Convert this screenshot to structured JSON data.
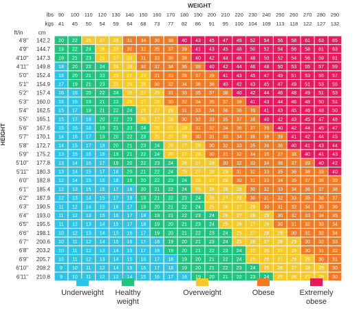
{
  "chart_data": {
    "type": "heatmap",
    "x_title": "WEIGHT",
    "y_title": "HEIGHT",
    "header_labels": {
      "lbs": "lbs",
      "kgs": "kgs",
      "ftin": "ft/in",
      "cm": "cm"
    },
    "weights_lbs": [
      "90",
      "100",
      "110",
      "120",
      "130",
      "140",
      "150",
      "160",
      "170",
      "180",
      "190",
      "200",
      "210",
      "220",
      "230",
      "240",
      "250",
      "260",
      "270",
      "280",
      "290"
    ],
    "weights_kgs": [
      "41",
      "45",
      "50",
      "54",
      "59",
      "64",
      "68",
      "73",
      "77",
      "82",
      "86",
      "91",
      "95",
      "100",
      "104",
      "109",
      "113",
      "118",
      "122",
      "127",
      "132"
    ],
    "heights_ftin": [
      "4'8\"",
      "4'9\"",
      "4'10\"",
      "4'11\"",
      "5'0\"",
      "5'1\"",
      "5'2\"",
      "5'3\"",
      "5'4\"",
      "5'5\"",
      "5'6\"",
      "5'7\"",
      "5'8\"",
      "5'9\"",
      "5'10\"",
      "5'11\"",
      "6'0\"",
      "6'1\"",
      "6'2\"",
      "6'3\"",
      "6'4\"",
      "6'5\"",
      "6'6\"",
      "6'7\"",
      "6'8\"",
      "6'9\"",
      "6'10\"",
      "6'11\""
    ],
    "heights_cm": [
      "142.2",
      "144.7",
      "147.3",
      "149.8",
      "152.4",
      "154.9",
      "157.4",
      "160.0",
      "162.5",
      "165.1",
      "167.6",
      "170.1",
      "172.7",
      "175.2",
      "177.8",
      "180.3",
      "182.8",
      "185.4",
      "187.9",
      "190.5",
      "193.0",
      "195.5",
      "198.1",
      "200.6",
      "203.2",
      "205.7",
      "208.2",
      "210.8"
    ],
    "values": [
      [
        20,
        22,
        25,
        27,
        29,
        31,
        34,
        36,
        38,
        40,
        43,
        45,
        47,
        49,
        52,
        54,
        56,
        58,
        61,
        63,
        65
      ],
      [
        19,
        22,
        24,
        26,
        28,
        30,
        32,
        35,
        37,
        39,
        41,
        43,
        45,
        48,
        50,
        52,
        54,
        56,
        58,
        61,
        63
      ],
      [
        19,
        21,
        23,
        25,
        27,
        29,
        31,
        33,
        36,
        38,
        40,
        42,
        44,
        46,
        48,
        50,
        52,
        54,
        56,
        59,
        61
      ],
      [
        18,
        20,
        22,
        24,
        26,
        28,
        30,
        32,
        34,
        36,
        38,
        40,
        42,
        44,
        46,
        48,
        50,
        53,
        55,
        57,
        59
      ],
      [
        18,
        20,
        21,
        23,
        25,
        27,
        29,
        31,
        33,
        35,
        37,
        39,
        41,
        43,
        45,
        47,
        49,
        51,
        53,
        55,
        57
      ],
      [
        17,
        19,
        21,
        23,
        25,
        26,
        28,
        30,
        32,
        34,
        36,
        38,
        40,
        42,
        43,
        45,
        47,
        49,
        51,
        53,
        55
      ],
      [
        16,
        18,
        20,
        22,
        24,
        26,
        27,
        29,
        31,
        33,
        35,
        37,
        38,
        40,
        42,
        44,
        46,
        48,
        49,
        51,
        53
      ],
      [
        16,
        18,
        19,
        21,
        23,
        25,
        27,
        28,
        30,
        32,
        34,
        35,
        37,
        39,
        41,
        43,
        44,
        46,
        48,
        50,
        51
      ],
      [
        15,
        17,
        19,
        21,
        22,
        24,
        26,
        27,
        29,
        31,
        33,
        34,
        36,
        38,
        39,
        41,
        43,
        45,
        46,
        48,
        50
      ],
      [
        15,
        17,
        18,
        20,
        22,
        23,
        25,
        27,
        28,
        30,
        32,
        33,
        35,
        37,
        38,
        40,
        42,
        43,
        45,
        47,
        48
      ],
      [
        15,
        16,
        18,
        19,
        21,
        23,
        24,
        26,
        27,
        29,
        31,
        32,
        34,
        36,
        37,
        39,
        40,
        42,
        44,
        45,
        47
      ],
      [
        14,
        16,
        17,
        19,
        20,
        22,
        23,
        25,
        27,
        28,
        30,
        31,
        33,
        34,
        36,
        38,
        39,
        41,
        42,
        44,
        45
      ],
      [
        14,
        15,
        17,
        18,
        20,
        21,
        23,
        24,
        26,
        27,
        29,
        30,
        32,
        33,
        35,
        36,
        38,
        40,
        41,
        43,
        44
      ],
      [
        13,
        15,
        16,
        18,
        19,
        21,
        22,
        24,
        25,
        27,
        28,
        30,
        31,
        32,
        34,
        35,
        37,
        38,
        40,
        41,
        43
      ],
      [
        13,
        14,
        16,
        17,
        19,
        20,
        22,
        23,
        24,
        26,
        27,
        29,
        30,
        32,
        33,
        34,
        36,
        37,
        39,
        40,
        42
      ],
      [
        13,
        14,
        15,
        17,
        18,
        20,
        21,
        22,
        24,
        25,
        27,
        28,
        29,
        31,
        32,
        33,
        35,
        36,
        38,
        39,
        40
      ],
      [
        12,
        14,
        15,
        16,
        18,
        19,
        20,
        22,
        23,
        24,
        26,
        27,
        28,
        30,
        31,
        33,
        34,
        35,
        37,
        38,
        39
      ],
      [
        12,
        13,
        15,
        16,
        17,
        18,
        20,
        21,
        22,
        24,
        25,
        26,
        28,
        29,
        30,
        32,
        33,
        34,
        36,
        37,
        38
      ],
      [
        12,
        13,
        14,
        15,
        17,
        18,
        19,
        21,
        22,
        23,
        24,
        26,
        27,
        28,
        30,
        31,
        32,
        33,
        35,
        36,
        37
      ],
      [
        11,
        12,
        14,
        15,
        16,
        17,
        19,
        20,
        21,
        22,
        24,
        25,
        26,
        27,
        29,
        30,
        31,
        32,
        34,
        35,
        36
      ],
      [
        11,
        12,
        13,
        15,
        16,
        17,
        18,
        19,
        21,
        22,
        23,
        24,
        26,
        27,
        28,
        29,
        30,
        32,
        33,
        34,
        35
      ],
      [
        11,
        12,
        13,
        14,
        15,
        17,
        18,
        19,
        20,
        21,
        23,
        24,
        25,
        26,
        27,
        28,
        30,
        31,
        32,
        33,
        34
      ],
      [
        10,
        12,
        13,
        14,
        15,
        16,
        17,
        19,
        20,
        21,
        22,
        23,
        24,
        25,
        27,
        28,
        29,
        30,
        31,
        32,
        34
      ],
      [
        10,
        11,
        12,
        14,
        15,
        16,
        17,
        18,
        19,
        20,
        21,
        23,
        24,
        25,
        26,
        27,
        28,
        29,
        30,
        32,
        33
      ],
      [
        10,
        11,
        12,
        13,
        14,
        15,
        17,
        18,
        19,
        20,
        21,
        22,
        23,
        24,
        25,
        26,
        27,
        29,
        30,
        31,
        32
      ],
      [
        10,
        11,
        12,
        13,
        14,
        15,
        16,
        17,
        18,
        19,
        20,
        21,
        22,
        24,
        25,
        26,
        27,
        28,
        29,
        30,
        31
      ],
      [
        9,
        10,
        11,
        12,
        14,
        15,
        16,
        17,
        18,
        19,
        20,
        21,
        22,
        23,
        24,
        25,
        26,
        27,
        28,
        29,
        30
      ],
      [
        9,
        10,
        11,
        12,
        13,
        14,
        15,
        16,
        17,
        18,
        19,
        20,
        21,
        22,
        23,
        24,
        25,
        26,
        27,
        28,
        30
      ]
    ],
    "categories": [
      {
        "name": "Underweight",
        "min": 0,
        "max": 18.4,
        "color": "#2ec4e8"
      },
      {
        "name": "Healthy weight",
        "min": 18.5,
        "max": 24.9,
        "color": "#1fc57e"
      },
      {
        "name": "Overweight",
        "min": 25,
        "max": 29.9,
        "color": "#f6c928"
      },
      {
        "name": "Obese",
        "min": 30,
        "max": 39.9,
        "color": "#f27a22"
      },
      {
        "name": "Extremely obese",
        "min": 40,
        "max": 100,
        "color": "#e8195c"
      }
    ],
    "grid": true,
    "legend_position": "bottom"
  }
}
